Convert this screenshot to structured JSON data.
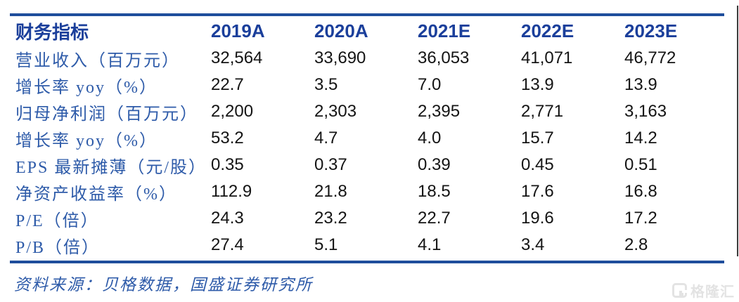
{
  "colors": {
    "rule_blue": "#1F4E9C",
    "header_text_blue": "#1B3F9B",
    "label_text_blue": "#2E5BA9",
    "value_text": "#141414",
    "footer_text_blue": "#2E5BA9",
    "watermark_gray": "#E3E3E3",
    "edge_line_dark": "#3C3C3C"
  },
  "table": {
    "header": [
      "财务指标",
      "2019A",
      "2020A",
      "2021E",
      "2022E",
      "2023E"
    ],
    "rows": [
      {
        "label": "营业收入（百万元）",
        "values": [
          "32,564",
          "33,690",
          "36,053",
          "41,071",
          "46,772"
        ]
      },
      {
        "label": "增长率 yoy（%）",
        "values": [
          "22.7",
          "3.5",
          "7.0",
          "13.9",
          "13.9"
        ]
      },
      {
        "label": "归母净利润（百万元）",
        "values": [
          "2,200",
          "2,303",
          "2,395",
          "2,771",
          "3,163"
        ]
      },
      {
        "label": "增长率 yoy（%）",
        "values": [
          "53.2",
          "4.7",
          "4.0",
          "15.7",
          "14.2"
        ]
      },
      {
        "label": "EPS 最新摊薄（元/股）",
        "values": [
          "0.35",
          "0.37",
          "0.39",
          "0.45",
          "0.51"
        ]
      },
      {
        "label": "净资产收益率（%）",
        "values": [
          "112.9",
          "21.8",
          "18.5",
          "17.6",
          "16.8"
        ]
      },
      {
        "label": "P/E（倍）",
        "values": [
          "24.3",
          "23.2",
          "22.7",
          "19.6",
          "17.2"
        ]
      },
      {
        "label": "P/B（倍）",
        "values": [
          "27.4",
          "5.1",
          "4.1",
          "3.4",
          "2.8"
        ]
      }
    ]
  },
  "footer": {
    "source": "资料来源：贝格数据，国盛证券研究所"
  },
  "watermark": {
    "brand": "格隆汇"
  }
}
